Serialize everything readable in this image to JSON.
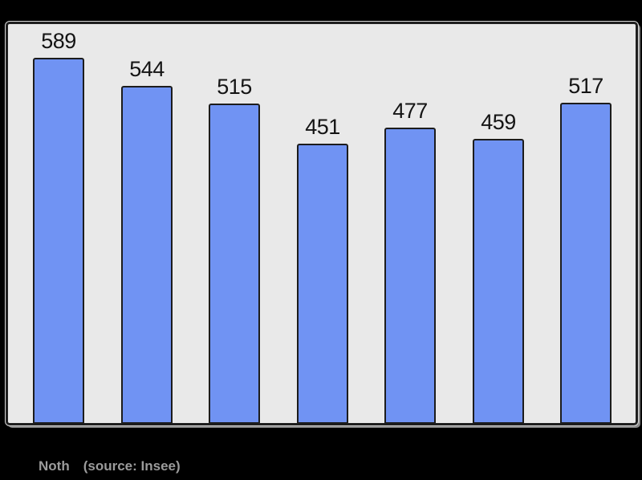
{
  "window": {
    "background_color": "#000000"
  },
  "chart_data": {
    "type": "bar",
    "values": [
      589,
      544,
      515,
      451,
      477,
      459,
      517
    ],
    "value_labels": [
      "589",
      "544",
      "515",
      "451",
      "477",
      "459",
      "517"
    ],
    "title": "",
    "xlabel": "",
    "ylabel": "",
    "ylim": [
      0,
      650
    ],
    "grid": false,
    "legend": false,
    "bar_count": 7,
    "bar_fill_color": "#7093f3",
    "bar_border_color": "#1c1c1c",
    "panel_background_color": "#e9e9e9",
    "panel_border_color": "#1f1f1f",
    "value_label_color": "#141414",
    "caption": "Noth",
    "source_note": "(source: Insee)",
    "caption_color": "#9b9b9b"
  }
}
